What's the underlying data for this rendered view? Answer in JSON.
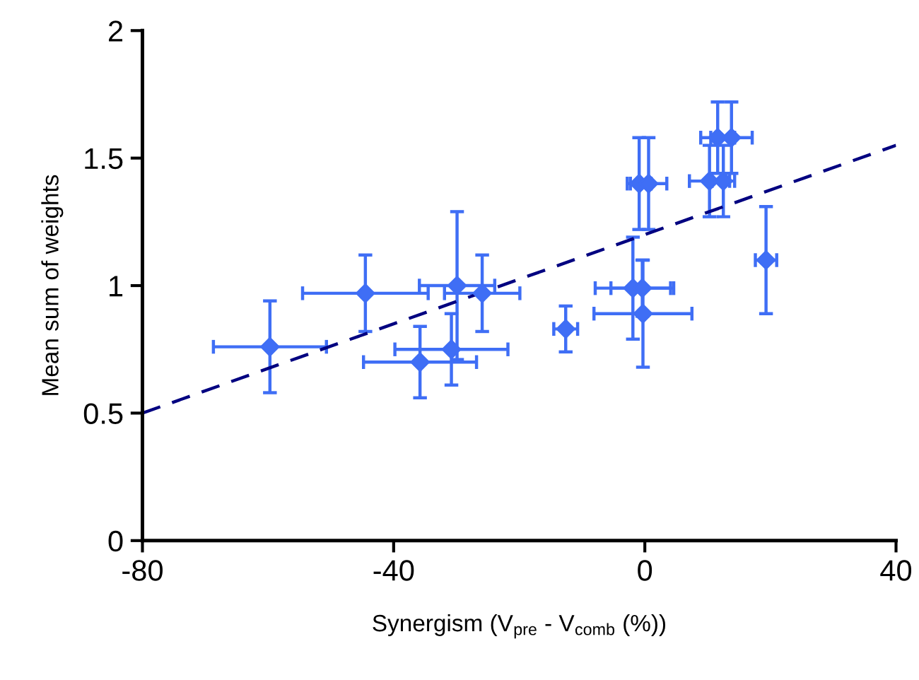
{
  "chart_data": {
    "type": "scatter",
    "xlabel": "Synergism (V$_{pre}$ - V$_{comb}$ (%))",
    "ylabel": "Mean sum of weights",
    "xlim": [
      -80,
      40
    ],
    "ylim": [
      0,
      2
    ],
    "xticks": [
      -80,
      -40,
      0,
      40
    ],
    "yticks": [
      0,
      0.5,
      1,
      1.5,
      2
    ],
    "grid": false,
    "series": [
      {
        "color": "#3f6ef5",
        "marker": "diamond",
        "x": [
          -59.7,
          -44.5,
          -29.9,
          -25.9,
          -30.8,
          -35.8,
          -12.6,
          -1.9,
          -0.4,
          -0.3,
          -0.9,
          0.6,
          11.6,
          13.8,
          10.3,
          12.5,
          19.3
        ],
        "values": [
          0.76,
          0.97,
          1.0,
          0.97,
          0.75,
          0.7,
          0.83,
          0.99,
          0.99,
          0.89,
          1.4,
          1.4,
          1.58,
          1.58,
          1.41,
          1.41,
          1.1
        ],
        "xerrors": [
          9,
          10,
          6,
          6,
          9,
          9,
          1.9,
          6,
          5,
          7.8,
          1.9,
          2.9,
          2.7,
          3.3,
          3.2,
          1.8,
          1.7
        ],
        "errors": [
          0.18,
          0.15,
          0.29,
          0.15,
          0.14,
          0.14,
          0.09,
          0.2,
          0.11,
          0.21,
          0.18,
          0.18,
          0.14,
          0.14,
          0.14,
          0.14,
          0.21
        ]
      },
      {
        "type": "line",
        "color": "#000080",
        "marker": "none",
        "line_style": "dashed",
        "x": [
          -80,
          40
        ],
        "values": [
          0.5,
          1.55
        ]
      }
    ]
  }
}
